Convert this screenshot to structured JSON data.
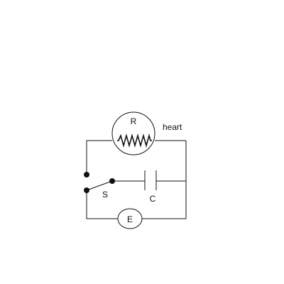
{
  "labels": {
    "resistor": "R",
    "resistor_note": "heart",
    "switch": "S",
    "capacitor": "C",
    "source": "E"
  },
  "colors": {
    "stroke": "#111111",
    "background": "#ffffff"
  }
}
